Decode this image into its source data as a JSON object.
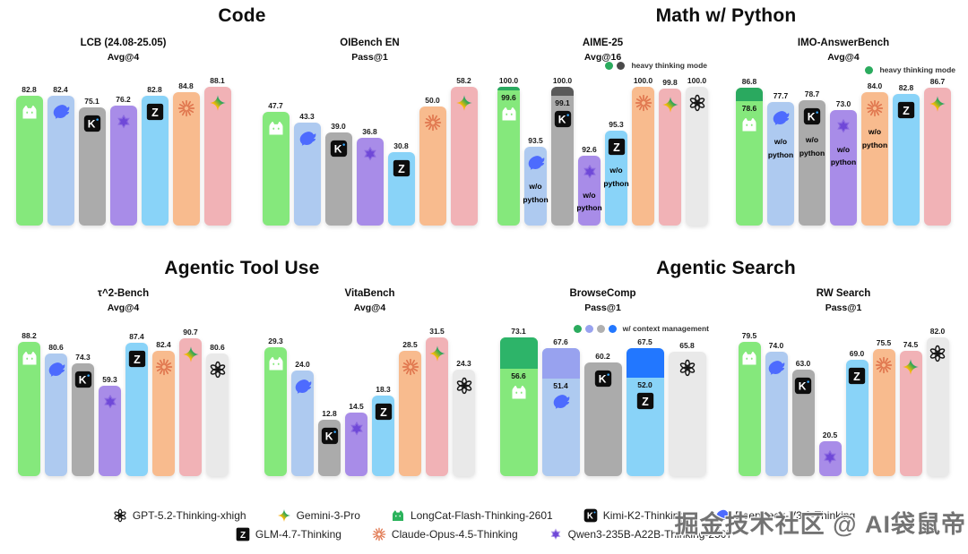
{
  "sections": [
    {
      "title": "Code"
    },
    {
      "title": "Math w/ Python"
    },
    {
      "title": "Agentic Tool Use"
    },
    {
      "title": "Agentic Search"
    }
  ],
  "models": {
    "longcat": {
      "name": "LongCat-Flash-Thinking-2601",
      "bar_color": "#85e87c",
      "icon_color": "#2bb35c"
    },
    "deepseek": {
      "name": "DeepSeek-V3.2-Thinking",
      "bar_color": "#aecaf0",
      "icon_color": "#4d6bfe"
    },
    "kimi": {
      "name": "Kimi-K2-Thinking",
      "bar_color": "#ababab",
      "icon_color": "#0d0d0d"
    },
    "qwen": {
      "name": "Qwen3-235B-A22B-Thinking-2507",
      "bar_color": "#a88ce8",
      "icon_color": "#6f48d8"
    },
    "glm": {
      "name": "GLM-4.7-Thinking",
      "bar_color": "#89d3f8",
      "icon_color": "#0d0d0d"
    },
    "claude": {
      "name": "Claude-Opus-4.5-Thinking",
      "bar_color": "#f8bb8e",
      "icon_color": "#e0764e"
    },
    "gemini": {
      "name": "Gemini-3-Pro",
      "bar_color": "#f1b2b6",
      "icon_color": "#4285f4"
    },
    "gpt": {
      "name": "GPT-5.2-Thinking-xhigh",
      "bar_color": "#e9e9e9",
      "icon_color": "#161616"
    }
  },
  "chart_data": [
    {
      "type": "bar",
      "section": "Code",
      "title": "LCB (24.08-25.05)",
      "subtitle": "Avg@4",
      "ylim": [
        0,
        94
      ],
      "bars": [
        {
          "model": "longcat",
          "value": 82.8
        },
        {
          "model": "deepseek",
          "value": 82.4
        },
        {
          "model": "kimi",
          "value": 75.1
        },
        {
          "model": "qwen",
          "value": 76.2
        },
        {
          "model": "glm",
          "value": 82.8
        },
        {
          "model": "claude",
          "value": 84.8
        },
        {
          "model": "gemini",
          "value": 88.1
        }
      ]
    },
    {
      "type": "bar",
      "section": "Code",
      "title": "OIBench EN",
      "subtitle": "Pass@1",
      "ylim": [
        0,
        62
      ],
      "bars": [
        {
          "model": "longcat",
          "value": 47.7
        },
        {
          "model": "deepseek",
          "value": 43.3
        },
        {
          "model": "kimi",
          "value": 39.0
        },
        {
          "model": "qwen",
          "value": 36.8
        },
        {
          "model": "glm",
          "value": 30.8
        },
        {
          "model": "claude",
          "value": 50.0
        },
        {
          "model": "gemini",
          "value": 58.2
        }
      ]
    },
    {
      "type": "bar",
      "section": "Math w/ Python",
      "title": "AIME-25",
      "subtitle": "Avg@16",
      "ylim": [
        85,
        101
      ],
      "legend": {
        "label": "heavy thinking mode",
        "dots": [
          "#2bab5e",
          "#4a4a4a"
        ]
      },
      "bars": [
        {
          "model": "longcat",
          "value": 100.0,
          "base": 99.6,
          "cap_color": "#2aa95f"
        },
        {
          "model": "deepseek",
          "value": 93.5,
          "note": "w/o python"
        },
        {
          "model": "kimi",
          "value": 100.0,
          "base": 99.1,
          "cap_color": "#5a5a5a"
        },
        {
          "model": "qwen",
          "value": 92.6,
          "note": "w/o python"
        },
        {
          "model": "glm",
          "value": 95.3,
          "note": "w/o python"
        },
        {
          "model": "claude",
          "value": 100.0
        },
        {
          "model": "gemini",
          "value": 99.8
        },
        {
          "model": "gpt",
          "value": 100.0
        }
      ]
    },
    {
      "type": "bar",
      "section": "Math w/ Python",
      "title": "IMO-AnswerBench",
      "subtitle": "Avg@4",
      "ylim": [
        0,
        93
      ],
      "legend": {
        "label": "heavy thinking mode",
        "dots": [
          "#2bab5e"
        ]
      },
      "bars": [
        {
          "model": "longcat",
          "value": 86.8,
          "base": 78.6,
          "cap_color": "#2aa95f"
        },
        {
          "model": "deepseek",
          "value": 77.7,
          "note": "w/o python"
        },
        {
          "model": "kimi",
          "value": 78.7,
          "note": "w/o python"
        },
        {
          "model": "qwen",
          "value": 73.0,
          "note": "w/o python"
        },
        {
          "model": "claude",
          "value": 84.0,
          "note": "w/o python"
        },
        {
          "model": "glm",
          "value": 82.8
        },
        {
          "model": "gemini",
          "value": 86.7
        }
      ]
    },
    {
      "type": "bar",
      "section": "Agentic Tool Use",
      "title": "τ^2-Bench",
      "subtitle": "Avg@4",
      "ylim": [
        0,
        97
      ],
      "bars": [
        {
          "model": "longcat",
          "value": 88.2
        },
        {
          "model": "deepseek",
          "value": 80.6
        },
        {
          "model": "kimi",
          "value": 74.3
        },
        {
          "model": "qwen",
          "value": 59.3
        },
        {
          "model": "glm",
          "value": 87.4
        },
        {
          "model": "claude",
          "value": 82.4
        },
        {
          "model": "gemini",
          "value": 90.7
        },
        {
          "model": "gpt",
          "value": 80.6
        }
      ]
    },
    {
      "type": "bar",
      "section": "Agentic Tool Use",
      "title": "VitaBench",
      "subtitle": "Avg@4",
      "ylim": [
        0,
        33.6
      ],
      "bars": [
        {
          "model": "longcat",
          "value": 29.3
        },
        {
          "model": "deepseek",
          "value": 24.0
        },
        {
          "model": "kimi",
          "value": 12.8
        },
        {
          "model": "qwen",
          "value": 14.5
        },
        {
          "model": "glm",
          "value": 18.3
        },
        {
          "model": "claude",
          "value": 28.5
        },
        {
          "model": "gemini",
          "value": 31.5
        },
        {
          "model": "gpt",
          "value": 24.3
        }
      ]
    },
    {
      "type": "bar",
      "section": "Agentic Search",
      "title": "BrowseComp",
      "subtitle": "Pass@1",
      "ylim": [
        0,
        78
      ],
      "legend": {
        "label": "w/ context management",
        "dots": [
          "#2bab5e",
          "#98a2ef",
          "#b0b0b0",
          "#2277ff"
        ]
      },
      "bars": [
        {
          "model": "longcat",
          "value": 73.1,
          "base": 56.6,
          "cap_color": "#2db469"
        },
        {
          "model": "deepseek",
          "value": 67.6,
          "base": 51.4,
          "cap_color": "#98a2ef"
        },
        {
          "model": "kimi",
          "value": 60.2
        },
        {
          "model": "glm",
          "value": 67.5,
          "base": 52.0,
          "cap_color": "#2277ff"
        },
        {
          "model": "gpt",
          "value": 65.8
        }
      ]
    },
    {
      "type": "bar",
      "section": "Agentic Search",
      "title": "RW Search",
      "subtitle": "Pass@1",
      "ylim": [
        0,
        87.5
      ],
      "bars": [
        {
          "model": "longcat",
          "value": 79.5
        },
        {
          "model": "deepseek",
          "value": 74.0
        },
        {
          "model": "kimi",
          "value": 63.0
        },
        {
          "model": "qwen",
          "value": 20.5
        },
        {
          "model": "glm",
          "value": 69.0
        },
        {
          "model": "claude",
          "value": 75.5
        },
        {
          "model": "gemini",
          "value": 74.5
        },
        {
          "model": "gpt",
          "value": 82.0
        }
      ]
    }
  ],
  "legend": {
    "rows": [
      [
        "gpt",
        "gemini",
        "longcat",
        "kimi",
        "deepseek"
      ],
      [
        "glm",
        "claude",
        "qwen"
      ]
    ]
  },
  "watermark": "掘金技术社区 @ AI袋鼠帝"
}
